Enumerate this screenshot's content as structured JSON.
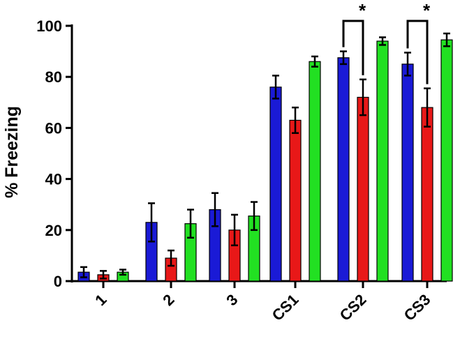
{
  "chart_data": {
    "type": "bar",
    "title": "",
    "xlabel": "",
    "ylabel": "% Freezing",
    "ylim": [
      0,
      100
    ],
    "yticks": [
      0,
      20,
      40,
      60,
      80,
      100
    ],
    "categories": [
      "1",
      "2",
      "3",
      "CS1",
      "CS2",
      "CS3"
    ],
    "grid": false,
    "legend": "none",
    "series": [
      {
        "color": "#1a1ad6",
        "values": [
          3.5,
          23,
          28,
          76,
          87.5,
          85
        ],
        "errors": [
          2,
          7.5,
          6.5,
          4.5,
          2.5,
          4.5
        ]
      },
      {
        "color": "#e81818",
        "values": [
          2.5,
          9,
          20,
          63,
          72,
          68
        ],
        "errors": [
          1.5,
          3,
          6,
          5,
          7,
          7.5
        ]
      },
      {
        "color": "#22e022",
        "values": [
          3.5,
          22.5,
          25.5,
          86,
          94,
          94.5
        ],
        "errors": [
          1,
          5.5,
          5.5,
          2,
          1.5,
          2.5
        ]
      }
    ],
    "significance": [
      {
        "category": "CS2",
        "between": [
          0,
          1
        ],
        "label": "*"
      },
      {
        "category": "CS3",
        "between": [
          0,
          1
        ],
        "label": "*"
      }
    ]
  }
}
